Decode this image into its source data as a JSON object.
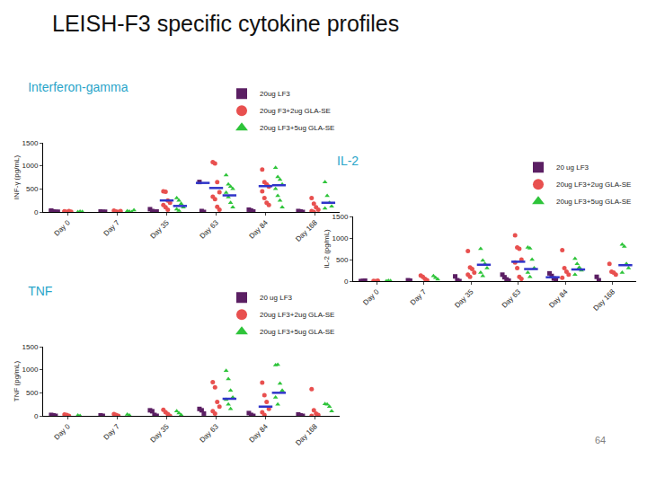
{
  "title": "LEISH-F3 specific cytokine profiles",
  "page_number": "64",
  "chart_data": [
    {
      "type": "scatter",
      "title": "Interferon-gamma",
      "y_label": "INF-γ (pg/mL)",
      "categories": [
        "Day 0",
        "Day 7",
        "Day 35",
        "Day 63",
        "Day 84",
        "Day 168"
      ],
      "ylim": [
        0,
        1500
      ],
      "yticks": [
        0,
        500,
        1000,
        1500
      ],
      "grid": false,
      "legend": "top right",
      "series": [
        {
          "name": "20ug LF3",
          "color": "#5b1f63",
          "marker": "square",
          "values": [
            [
              20,
              10,
              0,
              5,
              30
            ],
            [
              10,
              0,
              5
            ],
            [
              60,
              20,
              0,
              10
            ],
            [
              650,
              20,
              0
            ],
            [
              50,
              30,
              10
            ],
            [
              20,
              10,
              0
            ]
          ],
          "means": [
            null,
            null,
            null,
            630,
            null,
            null
          ]
        },
        {
          "name": "20ug F3+2ug GLA-SE",
          "color": "#e8504f",
          "marker": "circle",
          "values": [
            [
              10,
              0,
              20,
              5,
              15
            ],
            [
              30,
              10,
              0,
              20
            ],
            [
              450,
              440,
              250,
              200,
              150,
              100,
              50
            ],
            [
              1080,
              1050,
              650,
              430,
              330,
              280,
              110,
              50
            ],
            [
              920,
              650,
              600,
              550,
              450,
              300,
              200,
              150
            ],
            [
              300,
              180,
              100,
              50,
              20,
              0
            ]
          ],
          "means": [
            null,
            null,
            250,
            520,
            560,
            null
          ]
        },
        {
          "name": "20ug LF3+5ug GLA-SE",
          "color": "#2ec43a",
          "marker": "triangle-up",
          "values": [
            [
              0,
              10,
              5
            ],
            [
              20,
              10,
              0,
              40
            ],
            [
              300,
              250,
              180,
              100,
              60,
              30
            ],
            [
              800,
              600,
              550,
              500,
              420,
              320,
              200,
              100
            ],
            [
              960,
              760,
              700,
              600,
              500,
              350,
              250,
              100
            ],
            [
              650,
              350,
              200,
              120,
              80
            ]
          ],
          "means": [
            null,
            null,
            130,
            360,
            580,
            200
          ]
        }
      ]
    },
    {
      "type": "scatter",
      "title": "IL-2",
      "y_label": "IL-2 (pg/mL)",
      "categories": [
        "Day 0",
        "Day 7",
        "Day 35",
        "Day 63",
        "Day 84",
        "Day 168"
      ],
      "ylim": [
        0,
        1500
      ],
      "yticks": [
        0,
        500,
        1000,
        1500
      ],
      "grid": false,
      "legend": "top right",
      "series": [
        {
          "name": "20 ug LF3",
          "color": "#5b1f63",
          "marker": "square",
          "values": [
            [
              0,
              5,
              10
            ],
            [
              20,
              10
            ],
            [
              110,
              20,
              0
            ],
            [
              150,
              90,
              40,
              10
            ],
            [
              180,
              120,
              60,
              20
            ],
            [
              100,
              20
            ]
          ],
          "means": [
            null,
            null,
            null,
            null,
            90,
            null
          ]
        },
        {
          "name": "20ug LF3+2ug GLA-SE",
          "color": "#e8504f",
          "marker": "circle",
          "values": [
            [
              5,
              0,
              10
            ],
            [
              130,
              100,
              50,
              20
            ],
            [
              700,
              320,
              280,
              200,
              150,
              100
            ],
            [
              1060,
              780,
              750,
              500,
              430,
              300,
              100,
              50
            ],
            [
              720,
              300,
              220,
              150,
              80
            ],
            [
              400,
              220,
              200,
              150
            ]
          ],
          "means": [
            null,
            null,
            null,
            450,
            null,
            null
          ]
        },
        {
          "name": "20ug LF3+5ug GLA-SE",
          "color": "#2ec43a",
          "marker": "triangle-up",
          "values": [
            [
              0,
              10,
              5
            ],
            [
              120,
              80,
              40
            ],
            [
              750,
              480,
              400,
              300,
              200,
              120
            ],
            [
              780,
              760,
              500,
              300,
              200,
              100
            ],
            [
              520,
              400,
              320,
              250,
              150
            ],
            [
              850,
              800,
              400,
              300,
              200
            ]
          ],
          "means": [
            null,
            null,
            380,
            280,
            270,
            370
          ]
        }
      ]
    },
    {
      "type": "scatter",
      "title": "TNF",
      "y_label": "TNF (pg/mL)",
      "categories": [
        "Day 0",
        "Day 7",
        "Day 35",
        "Day 63",
        "Day 84",
        "Day 168"
      ],
      "ylim": [
        0,
        1500
      ],
      "yticks": [
        0,
        500,
        1000,
        1500
      ],
      "grid": false,
      "legend": "top right",
      "series": [
        {
          "name": "20 ug LF3",
          "color": "#5b1f63",
          "marker": "square",
          "values": [
            [
              20,
              10,
              0
            ],
            [
              10,
              0
            ],
            [
              120,
              100,
              20,
              0
            ],
            [
              150,
              120,
              50
            ],
            [
              60,
              20,
              0
            ],
            [
              30,
              10,
              0
            ]
          ],
          "means": [
            null,
            null,
            null,
            null,
            null,
            null
          ]
        },
        {
          "name": "20ug LF3+2ug GLA-SE",
          "color": "#e8504f",
          "marker": "circle",
          "values": [
            [
              30,
              20,
              0
            ],
            [
              40,
              20,
              0
            ],
            [
              130,
              80,
              40,
              0
            ],
            [
              730,
              620,
              300,
              200,
              100,
              50
            ],
            [
              720,
              450,
              300,
              150,
              80,
              20
            ],
            [
              580,
              120,
              50,
              20,
              0
            ]
          ],
          "means": [
            null,
            null,
            null,
            null,
            200,
            null
          ]
        },
        {
          "name": "20ug LF3+5ug GLA-SE",
          "color": "#2ec43a",
          "marker": "triangle-up",
          "values": [
            [
              10,
              0
            ],
            [
              30,
              10
            ],
            [
              100,
              60,
              20
            ],
            [
              980,
              800,
              550,
              400,
              350,
              250,
              150
            ],
            [
              1100,
              1110,
              700,
              550,
              400,
              250
            ],
            [
              260,
              250,
              200,
              100
            ]
          ],
          "means": [
            null,
            null,
            null,
            370,
            500,
            null
          ]
        }
      ]
    }
  ]
}
